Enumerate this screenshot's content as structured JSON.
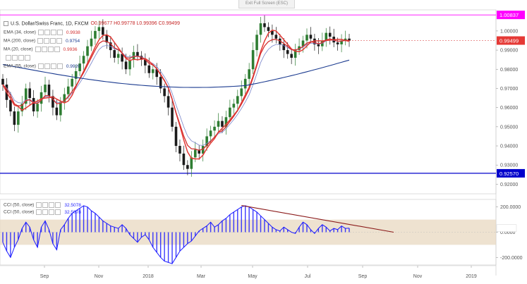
{
  "window": {
    "exit_fullscreen_label": "Exit Full Screen (ESC)"
  },
  "header": {
    "symbol": "U.S. Dollar/Swiss Franc, 1D, FXCM",
    "ohlc": "O0.99677 H0.99778 L0.99396 C0.99499"
  },
  "indicators": [
    {
      "label": "EMA (34, close)",
      "value": "0.9938",
      "color": "#d32f2f"
    },
    {
      "label": "MA (200, close)",
      "value": "0.9754",
      "color": "#1a3a8f"
    },
    {
      "label": "MA (20, close)",
      "value": "0.9936",
      "color": "#d32f2f"
    },
    {
      "label": "",
      "value": "",
      "color": "#9aa3c9"
    },
    {
      "label": "EMA (55, close)",
      "value": "0.9920",
      "color": "#1a3a8f"
    }
  ],
  "cci_legend": [
    {
      "label": "CCI (50, close)",
      "value": "32.5078"
    },
    {
      "label": "CCI (50, close)",
      "value": "32.5078"
    }
  ],
  "colors": {
    "bull": "#2e7d32",
    "bear": "#1b1b1b",
    "ema34": "#d32f2f",
    "ma20": "#e53935",
    "ma200": "#1a3a8f",
    "ema55": "#7986cb",
    "cci": "#1a1aff",
    "band": "#e8d8c0",
    "resistance": "#ff00ff",
    "support": "#0000cc",
    "trendline": "#8b1a1a"
  },
  "chart_data": {
    "type": "candlestick",
    "pair": "USD/CHF",
    "timeframe": "1D",
    "price_axis": {
      "min": 0.915,
      "max": 1.011,
      "ticks": [
        "1.00000",
        "0.99000",
        "0.98000",
        "0.97000",
        "0.96000",
        "0.95000",
        "0.94000",
        "0.93000",
        "0.92000"
      ]
    },
    "time_axis": {
      "ticks": [
        "Sep",
        "Nov",
        "2018",
        "Mar",
        "May",
        "Jul",
        "Sep",
        "Nov",
        "2019"
      ]
    },
    "horizontal_levels": [
      {
        "label": "1.00837",
        "value": 1.00837,
        "color": "#ff00ff"
      },
      {
        "label": "0.92570",
        "value": 0.9257,
        "color": "#0000cc"
      }
    ],
    "current_price": {
      "label": "0.99499",
      "value": 0.99499
    },
    "close_series": [
      0.972,
      0.964,
      0.958,
      0.951,
      0.958,
      0.962,
      0.97,
      0.965,
      0.958,
      0.962,
      0.968,
      0.972,
      0.966,
      0.96,
      0.956,
      0.963,
      0.967,
      0.971,
      0.975,
      0.979,
      0.983,
      0.987,
      0.992,
      0.996,
      1.0,
      1.002,
      0.998,
      0.994,
      0.99,
      0.986,
      0.988,
      0.984,
      0.98,
      0.985,
      0.989,
      0.987,
      0.985,
      0.982,
      0.978,
      0.98,
      0.976,
      0.97,
      0.966,
      0.96,
      0.95,
      0.94,
      0.936,
      0.93,
      0.928,
      0.934,
      0.938,
      0.936,
      0.94,
      0.945,
      0.948,
      0.95,
      0.953,
      0.95,
      0.955,
      0.96,
      0.962,
      0.966,
      0.97,
      0.975,
      0.98,
      0.99,
      0.998,
      1.004,
      1.002,
      1.0,
      0.998,
      0.996,
      0.993,
      0.99,
      0.988,
      0.986,
      0.99,
      0.992,
      0.995,
      0.998,
      0.996,
      0.993,
      0.992,
      0.995,
      0.999,
      0.997,
      0.994,
      0.993,
      0.995,
      0.996,
      0.995
    ],
    "cci_axis": {
      "min": -260,
      "max": 260,
      "ticks": [
        "200.0000",
        "0.0000",
        "-200.0000"
      ],
      "band": [
        -100,
        100
      ]
    },
    "cci_current": {
      "label": "32.5078",
      "value": 32.5078
    },
    "cci_series": [
      -80,
      -150,
      -200,
      -120,
      -60,
      30,
      80,
      40,
      -60,
      -120,
      40,
      90,
      20,
      -90,
      -140,
      20,
      60,
      110,
      150,
      170,
      190,
      210,
      200,
      170,
      150,
      120,
      90,
      70,
      50,
      40,
      30,
      60,
      30,
      -20,
      -50,
      -80,
      -40,
      -20,
      -60,
      -120,
      -160,
      -200,
      -230,
      -240,
      -250,
      -200,
      -150,
      -120,
      -90,
      -70,
      -30,
      10,
      30,
      50,
      80,
      40,
      60,
      90,
      110,
      140,
      160,
      180,
      200,
      210,
      200,
      180,
      160,
      130,
      100,
      70,
      40,
      20,
      10,
      40,
      20,
      0,
      -10,
      40,
      80,
      60,
      20,
      -10,
      30,
      60,
      40,
      10,
      30,
      20,
      50,
      30,
      32
    ]
  }
}
